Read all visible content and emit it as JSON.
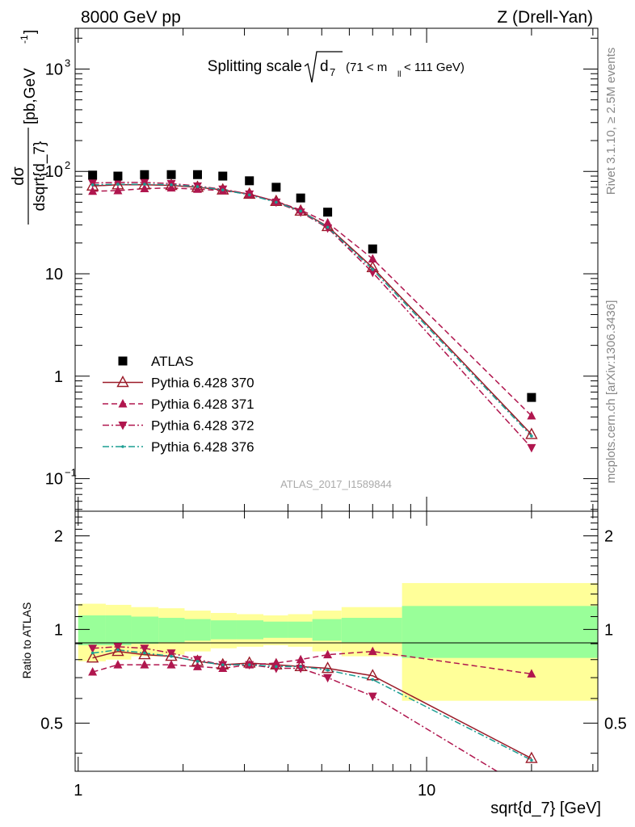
{
  "header": {
    "left": "8000 GeV pp",
    "right": "Z (Drell-Yan)"
  },
  "title": {
    "prefix": "Splitting scale",
    "symbol": "d",
    "subscript": "7",
    "range": "(71 < m",
    "range_sub": "ll",
    "range_end": " < 111 GeV)"
  },
  "ylabel_main": {
    "numerator": "dσ",
    "denominator": "dsqrt{d_7}",
    "units": "[pb,GeV",
    "units_exp": "-1",
    "units_close": "]"
  },
  "ylabel_ratio": "Ratio to ATLAS",
  "xlabel": "sqrt{d_7} [GeV]",
  "watermark": "ATLAS_2017_I1589844",
  "side_text_top": "Rivet 3.1.10, ≥ 2.5M events",
  "side_text_bottom": "mcplots.cern.ch [arXiv:1306.3436]",
  "ticks": {
    "main_y": [
      {
        "value": 0.1,
        "base": "10",
        "exp": "−1"
      },
      {
        "value": 1,
        "base": "1",
        "exp": ""
      },
      {
        "value": 10,
        "base": "10",
        "exp": ""
      },
      {
        "value": 100,
        "base": "10",
        "exp": "2"
      },
      {
        "value": 1000,
        "base": "10",
        "exp": "3"
      }
    ],
    "ratio_y": [
      {
        "value": 0.5,
        "label": "0.5"
      },
      {
        "value": 1,
        "label": "1"
      },
      {
        "value": 2,
        "label": "2"
      }
    ],
    "x": [
      {
        "value": 1,
        "label": "1"
      },
      {
        "value": 10,
        "label": "10"
      }
    ]
  },
  "chart_data": {
    "type": "scatter",
    "x_scale": "log",
    "y_scale": "log",
    "xlim": [
      0.98,
      31
    ],
    "ylim_main": [
      0.048,
      2500
    ],
    "ylim_ratio": [
      0.35,
      2.4
    ],
    "x": [
      1.1,
      1.3,
      1.55,
      1.85,
      2.2,
      2.6,
      3.1,
      3.7,
      4.35,
      5.2,
      7.0,
      20.0
    ],
    "bin_edges": [
      1.0,
      1.2,
      1.42,
      1.7,
      2.02,
      2.4,
      2.85,
      3.4,
      4.0,
      4.7,
      5.7,
      8.5,
      31.0
    ],
    "ratio_band": {
      "inner": [
        0.11,
        0.11,
        0.1,
        0.09,
        0.08,
        0.07,
        0.07,
        0.06,
        0.06,
        0.08,
        0.09,
        0.19
      ],
      "outer": [
        0.21,
        0.2,
        0.18,
        0.17,
        0.15,
        0.13,
        0.12,
        0.11,
        0.12,
        0.15,
        0.18,
        0.41
      ]
    },
    "legend_position": "lower-left",
    "series": [
      {
        "name": "ATLAS",
        "color": "#000000",
        "marker": "square",
        "line": "none",
        "values": [
          92,
          90,
          93,
          93,
          93,
          90,
          81,
          70,
          55,
          40,
          17.5,
          0.62
        ],
        "ratio": [
          1,
          1,
          1,
          1,
          1,
          1,
          1,
          1,
          1,
          1,
          1,
          1
        ]
      },
      {
        "name": "Pythia 6.428 370",
        "color": "#9a1a28",
        "marker": "triangle-up-open",
        "line": "solid",
        "values": [
          72,
          74,
          74,
          73,
          70,
          66,
          60,
          51,
          41,
          29,
          11.5,
          0.27
        ],
        "ratio": [
          0.81,
          0.85,
          0.83,
          0.82,
          0.79,
          0.77,
          0.78,
          0.77,
          0.76,
          0.75,
          0.71,
          0.385
        ]
      },
      {
        "name": "Pythia 6.428 371",
        "color": "#b0164e",
        "marker": "triangle-up",
        "line": "dashed",
        "values": [
          64,
          65,
          68,
          69,
          67,
          65,
          60,
          51,
          42,
          31.5,
          14,
          0.41
        ],
        "ratio": [
          0.73,
          0.77,
          0.77,
          0.77,
          0.76,
          0.75,
          0.77,
          0.78,
          0.8,
          0.83,
          0.85,
          0.72
        ]
      },
      {
        "name": "Pythia 6.428 372",
        "color": "#b0164e",
        "marker": "triangle-down",
        "line": "dashdot",
        "values": [
          77,
          78,
          78,
          76,
          72,
          67,
          60,
          50,
          40,
          28,
          10.3,
          0.2
        ],
        "ratio": [
          0.87,
          0.88,
          0.87,
          0.84,
          0.8,
          0.77,
          0.77,
          0.75,
          0.75,
          0.7,
          0.61,
          0.3
        ]
      },
      {
        "name": "Pythia 6.428 376",
        "color": "#1a9d92",
        "marker": "dot",
        "line": "dashdot",
        "values": [
          74,
          75,
          75,
          74,
          71,
          66,
          59,
          50,
          41,
          28.5,
          11,
          0.26
        ],
        "ratio": [
          0.84,
          0.86,
          0.84,
          0.82,
          0.79,
          0.77,
          0.77,
          0.76,
          0.76,
          0.74,
          0.69,
          0.38
        ]
      }
    ]
  }
}
